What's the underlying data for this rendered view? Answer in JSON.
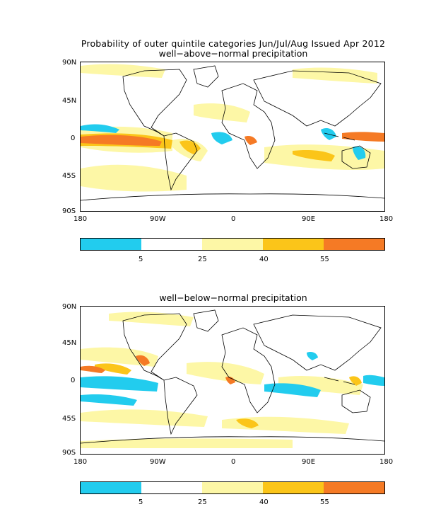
{
  "figure": {
    "title": "Probability of outer quintile categories Jun/Jul/Aug Issued Apr 2012"
  },
  "colors": {
    "cyan": "#22ccee",
    "white": "#ffffff",
    "lightyellow": "#fdf7a6",
    "gold": "#fbc519",
    "orange": "#f57a25"
  },
  "panels": [
    {
      "subtitle": "well−above−normal precipitation",
      "y_ticks": [
        "90N",
        "45N",
        "0",
        "45S",
        "90S"
      ],
      "x_ticks": [
        "180",
        "90W",
        "0",
        "90E",
        "180"
      ]
    },
    {
      "subtitle": "well−below−normal precipitation",
      "y_ticks": [
        "90N",
        "45N",
        "0",
        "45S",
        "90S"
      ],
      "x_ticks": [
        "180",
        "90W",
        "0",
        "90E",
        "180"
      ]
    }
  ],
  "colorbar": {
    "labels": [
      "5",
      "25",
      "40",
      "55"
    ],
    "colors": [
      "#22ccee",
      "#ffffff",
      "#fdf7a6",
      "#fbc519",
      "#f57a25"
    ]
  }
}
